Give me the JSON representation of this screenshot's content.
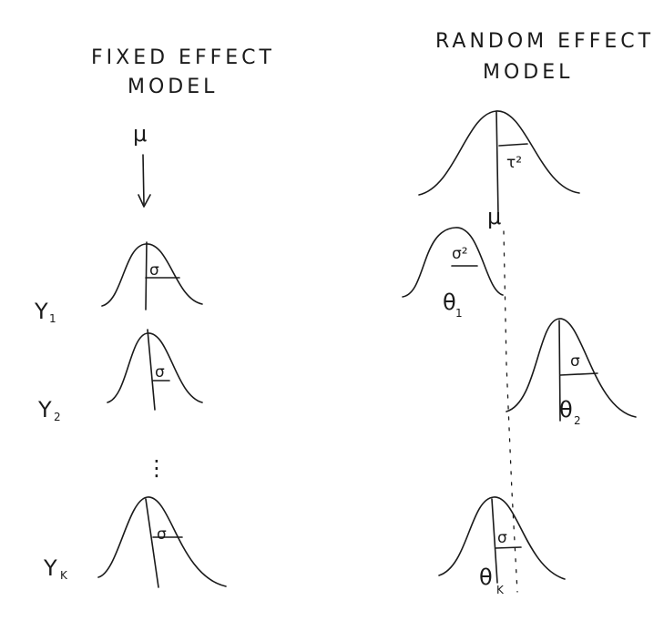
{
  "left_panel": {
    "title_line1": "FIXED EFFECT",
    "title_line2": "MODEL",
    "mu": "μ",
    "dots": "⋮",
    "rows": [
      {
        "y_label": "Y",
        "y_sub": "1",
        "sigma": "σ"
      },
      {
        "y_label": "Y",
        "y_sub": "2",
        "sigma": "σ"
      },
      {
        "y_label": "Y",
        "y_sub": "K",
        "sigma": "σ"
      }
    ]
  },
  "right_panel": {
    "title_line1": "RANDOM EFFECT",
    "title_line2": "MODEL",
    "mu": "μ",
    "tau_sq": "τ²",
    "rows": [
      {
        "sigma": "σ²",
        "theta": "θ",
        "theta_sub": "1"
      },
      {
        "sigma": "σ",
        "theta": "θ",
        "theta_sub": "2"
      },
      {
        "sigma": "σ",
        "theta": "θ",
        "theta_sub": "K"
      }
    ]
  }
}
